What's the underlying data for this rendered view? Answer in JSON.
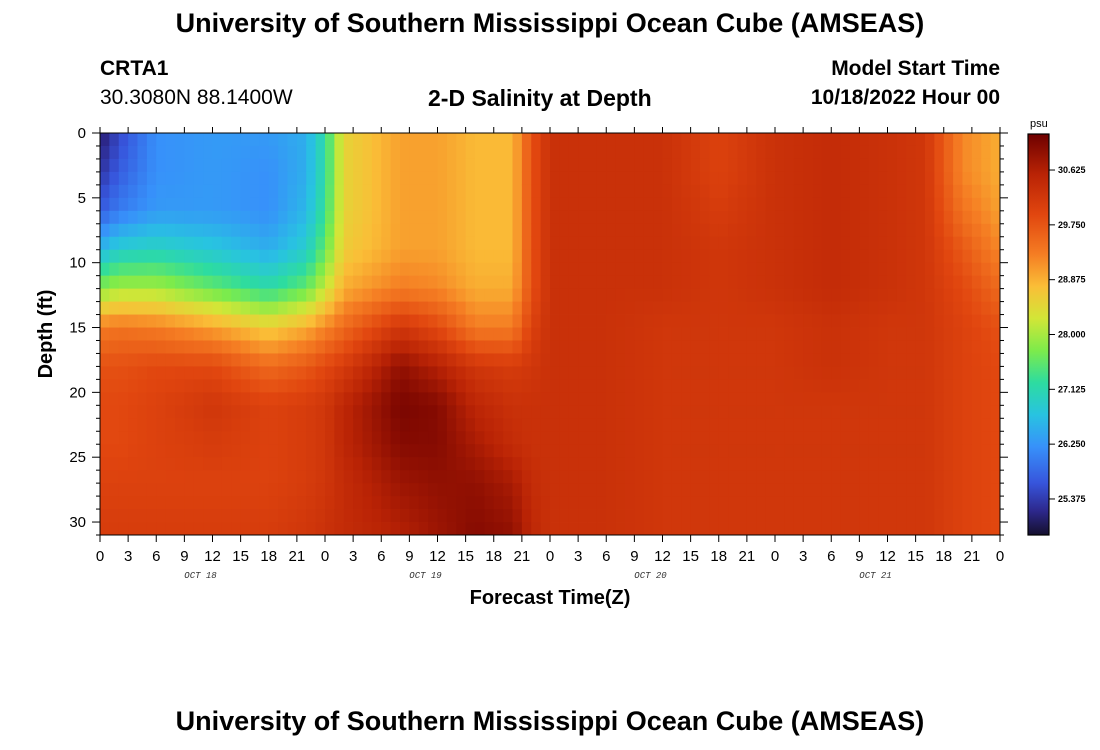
{
  "header": {
    "title": "University of Southern Mississippi Ocean Cube (AMSEAS)",
    "station": "CRTA1",
    "coords": "30.3080N  88.1400W",
    "subtitle": "2-D Salinity at Depth",
    "model_start_label": "Model Start Time",
    "model_start_value": "10/18/2022 Hour 00"
  },
  "footer": {
    "title": "University of Southern Mississippi Ocean Cube (AMSEAS)"
  },
  "chart_data": {
    "type": "heatmap",
    "xlabel": "Forecast Time(Z)",
    "ylabel": "Depth (ft)",
    "x_hours_range": [
      0,
      96
    ],
    "x_tick_labels": [
      "0",
      "3",
      "6",
      "9",
      "12",
      "15",
      "18",
      "21",
      "0",
      "3",
      "6",
      "9",
      "12",
      "15",
      "18",
      "21",
      "0",
      "3",
      "6",
      "9",
      "12",
      "15",
      "18",
      "21",
      "0",
      "3",
      "6",
      "9",
      "12",
      "15",
      "18",
      "21",
      "0"
    ],
    "day_labels": [
      "OCT 18",
      "OCT 19",
      "OCT 20",
      "OCT 21"
    ],
    "y_ticks": [
      0,
      5,
      10,
      15,
      20,
      25,
      30
    ],
    "ylim": [
      0,
      31
    ],
    "colorbar": {
      "unit": "psu",
      "range": [
        24.8,
        31.2
      ],
      "tick_values": [
        30.625,
        29.75,
        28.875,
        28.0,
        27.125,
        26.25,
        25.375
      ],
      "tick_labels": [
        "30.625",
        "29.750",
        "28.875",
        "28.000",
        "27.125",
        "26.250",
        "25.375"
      ]
    },
    "profile_hours": [
      0,
      2,
      6,
      12,
      18,
      22,
      24,
      26,
      32,
      36,
      40,
      44,
      46,
      48,
      54,
      60,
      66,
      72,
      78,
      84,
      88,
      92,
      96
    ],
    "profile_depths": [
      0,
      3,
      6,
      9,
      12,
      15,
      18,
      21,
      24,
      27,
      31
    ],
    "profiles": [
      [
        25.0,
        25.3,
        25.7,
        26.6,
        27.8,
        29.3,
        29.8,
        29.9,
        29.9,
        30.0,
        30.1
      ],
      [
        25.5,
        25.7,
        26.0,
        26.9,
        28.0,
        29.4,
        29.8,
        29.9,
        29.9,
        30.0,
        30.1
      ],
      [
        26.2,
        26.2,
        26.3,
        27.0,
        28.0,
        29.3,
        29.9,
        30.0,
        30.0,
        30.0,
        30.1
      ],
      [
        26.3,
        26.3,
        26.3,
        26.8,
        27.6,
        29.0,
        29.9,
        30.2,
        30.1,
        30.0,
        30.1
      ],
      [
        26.3,
        26.2,
        26.2,
        26.5,
        27.2,
        28.6,
        29.5,
        30.0,
        30.0,
        30.0,
        30.1
      ],
      [
        26.5,
        26.5,
        26.6,
        26.9,
        27.6,
        28.9,
        29.7,
        30.1,
        30.1,
        30.1,
        30.2
      ],
      [
        27.2,
        27.2,
        27.3,
        27.6,
        28.2,
        29.2,
        29.9,
        30.2,
        30.2,
        30.2,
        30.3
      ],
      [
        28.5,
        28.5,
        28.5,
        28.6,
        28.9,
        29.5,
        30.1,
        30.5,
        30.5,
        30.4,
        30.4
      ],
      [
        29.0,
        29.0,
        29.0,
        29.0,
        29.3,
        30.2,
        30.9,
        31.1,
        31.0,
        30.8,
        30.6
      ],
      [
        29.0,
        29.0,
        29.0,
        29.0,
        29.2,
        29.9,
        30.6,
        31.0,
        31.0,
        30.9,
        30.8
      ],
      [
        28.8,
        28.8,
        28.8,
        28.8,
        28.9,
        29.3,
        30.2,
        30.5,
        30.7,
        30.9,
        31.0
      ],
      [
        28.8,
        28.8,
        28.8,
        28.8,
        28.9,
        29.3,
        30.1,
        30.3,
        30.4,
        30.7,
        30.9
      ],
      [
        29.8,
        29.8,
        29.8,
        29.8,
        29.8,
        30.0,
        30.2,
        30.3,
        30.3,
        30.4,
        30.5
      ],
      [
        30.3,
        30.3,
        30.3,
        30.3,
        30.3,
        30.3,
        30.3,
        30.3,
        30.3,
        30.3,
        30.3
      ],
      [
        30.3,
        30.3,
        30.3,
        30.3,
        30.3,
        30.3,
        30.3,
        30.3,
        30.3,
        30.3,
        30.3
      ],
      [
        30.3,
        30.3,
        30.3,
        30.3,
        30.3,
        30.2,
        30.2,
        30.2,
        30.2,
        30.2,
        30.2
      ],
      [
        30.0,
        30.0,
        30.1,
        30.2,
        30.2,
        30.2,
        30.2,
        30.2,
        30.2,
        30.2,
        30.2
      ],
      [
        30.3,
        30.3,
        30.3,
        30.3,
        30.3,
        30.2,
        30.2,
        30.2,
        30.2,
        30.2,
        30.2
      ],
      [
        30.4,
        30.4,
        30.4,
        30.4,
        30.4,
        30.3,
        30.3,
        30.2,
        30.2,
        30.2,
        30.2
      ],
      [
        30.3,
        30.3,
        30.3,
        30.3,
        30.3,
        30.2,
        30.2,
        30.2,
        30.2,
        30.2,
        30.2
      ],
      [
        30.2,
        30.2,
        30.2,
        30.2,
        30.2,
        30.2,
        30.2,
        30.2,
        30.2,
        30.2,
        30.2
      ],
      [
        29.2,
        29.2,
        29.4,
        29.7,
        29.9,
        30.0,
        30.0,
        30.0,
        30.0,
        30.0,
        30.0
      ],
      [
        28.9,
        28.9,
        29.0,
        29.2,
        29.5,
        29.8,
        29.9,
        29.9,
        29.9,
        29.9,
        29.9
      ]
    ]
  }
}
